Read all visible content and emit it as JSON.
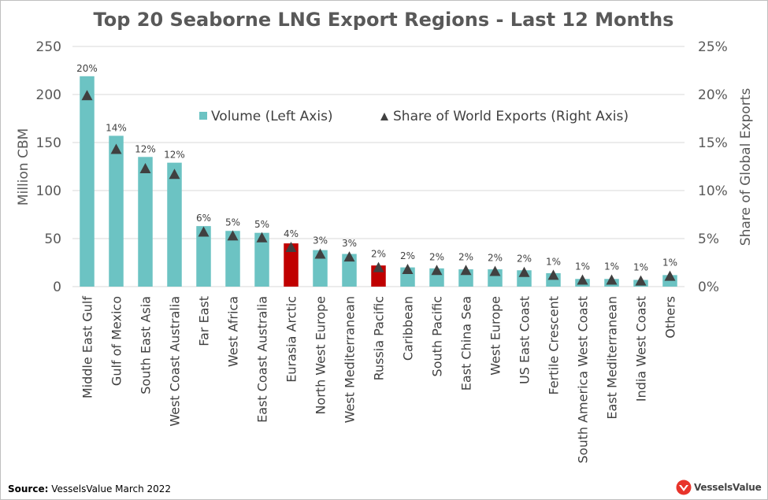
{
  "chart_data": {
    "type": "bar",
    "title": "Top 20 Seaborne LNG Export Regions - Last 12 Months",
    "ylabel": "Million CBM",
    "y2label": "Share of Global Exports",
    "ylim": [
      0,
      250
    ],
    "y2lim": [
      0,
      25
    ],
    "yticks": [
      "0",
      "50",
      "100",
      "150",
      "200",
      "250"
    ],
    "y2ticks": [
      "0%",
      "5%",
      "10%",
      "15%",
      "20%",
      "25%"
    ],
    "categories": [
      "Middle East Gulf",
      "Gulf of Mexico",
      "South East Asia",
      "West Coast Australia",
      "Far East",
      "West Africa",
      "East Coast Australia",
      "Eurasia Arctic",
      "North West Europe",
      "West Mediterranean",
      "Russia Pacific",
      "Caribbean",
      "South Pacific",
      "East China Sea",
      "West Europe",
      "US East Coast",
      "Fertile Crescent",
      "South America West Coast",
      "East Mediterranean",
      "India West Coast",
      "Others"
    ],
    "series": [
      {
        "name": "Volume (Left Axis)",
        "axis": "left",
        "values": [
          219,
          157,
          135,
          129,
          63,
          58,
          56,
          45,
          38,
          34,
          22,
          20,
          19,
          18,
          18,
          17,
          14,
          8,
          8,
          7,
          12
        ]
      },
      {
        "name": "Share of World Exports (Right Axis)",
        "axis": "right",
        "marker": "triangle",
        "values": [
          19.9,
          14.3,
          12.3,
          11.7,
          5.7,
          5.3,
          5.1,
          4.1,
          3.4,
          3.1,
          2.0,
          1.8,
          1.7,
          1.7,
          1.6,
          1.5,
          1.2,
          0.7,
          0.7,
          0.6,
          1.1
        ],
        "labels": [
          "20%",
          "14%",
          "12%",
          "12%",
          "6%",
          "5%",
          "5%",
          "4%",
          "3%",
          "3%",
          "2%",
          "2%",
          "2%",
          "2%",
          "2%",
          "2%",
          "1%",
          "1%",
          "1%",
          "1%",
          "1%"
        ]
      }
    ],
    "highlight_categories": [
      "Eurasia Arctic",
      "Russia Pacific"
    ],
    "legend_position": "top-center",
    "grid": true
  },
  "colors": {
    "bar": "#6cc3c3",
    "bar_highlight": "#c00000",
    "marker": "#404040",
    "grid": "#d9d9d9",
    "title": "#595959"
  },
  "footer": {
    "source_label": "Source:",
    "source_text": "VesselsValue March 2022",
    "brand": "VesselsValue"
  }
}
